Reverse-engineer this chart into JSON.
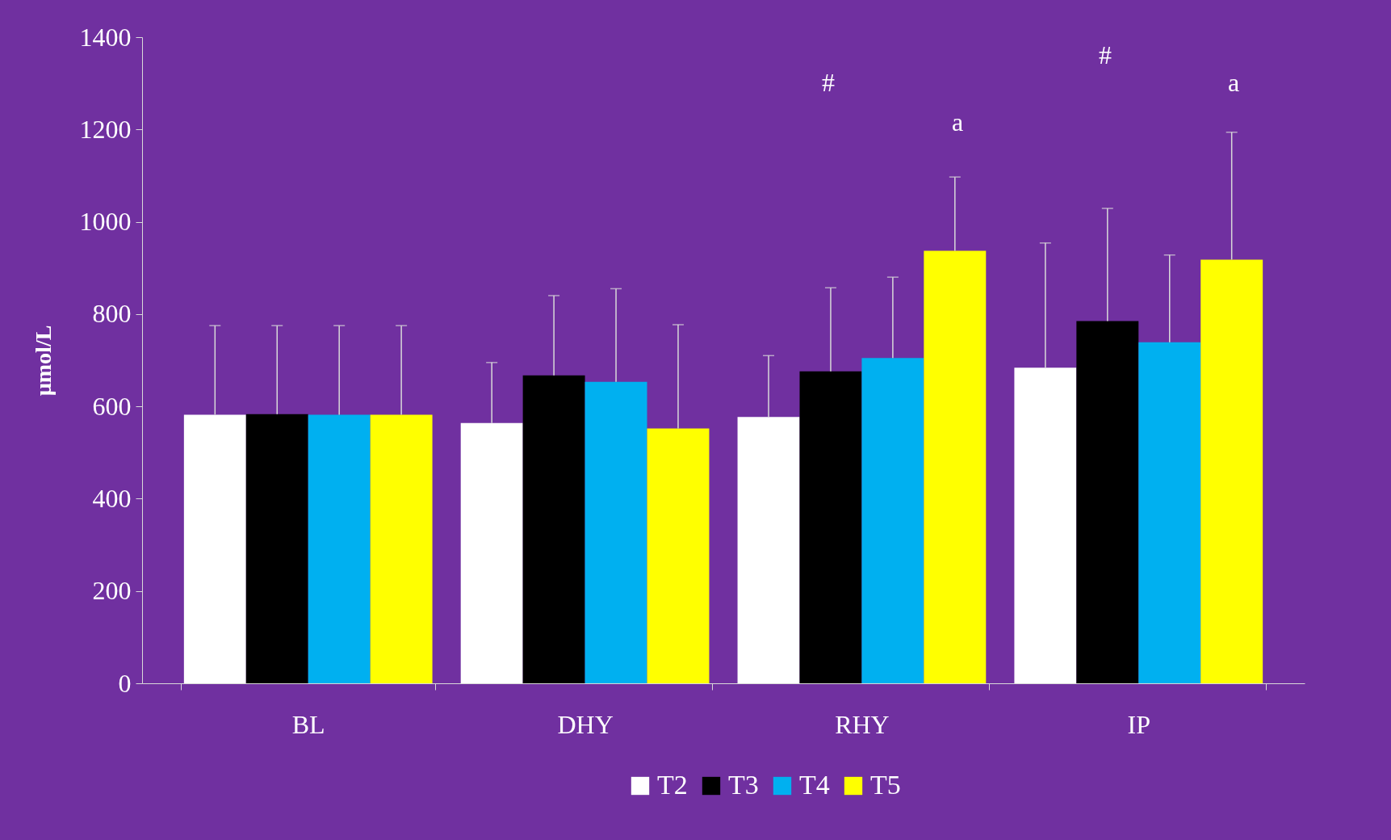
{
  "chart_data": {
    "type": "bar",
    "ylabel": "µmol/L",
    "categories": [
      "BL",
      "DHY",
      "RHY",
      "IP"
    ],
    "series": [
      {
        "name": "T2",
        "color": "#ffffff",
        "values": [
          582,
          564,
          577,
          684
        ],
        "errors": [
          [
            582,
            775
          ],
          [
            564,
            695
          ],
          [
            577,
            710
          ],
          [
            684,
            954
          ]
        ]
      },
      {
        "name": "T3",
        "color": "#000000",
        "values": [
          583,
          667,
          676,
          785
        ],
        "errors": [
          [
            583,
            775
          ],
          [
            667,
            840
          ],
          [
            676,
            857
          ],
          [
            785,
            1029
          ]
        ]
      },
      {
        "name": "T4",
        "color": "#00b0f0",
        "values": [
          582,
          653,
          705,
          739
        ],
        "errors": [
          [
            582,
            775
          ],
          [
            653,
            855
          ],
          [
            705,
            880
          ],
          [
            739,
            928
          ]
        ]
      },
      {
        "name": "T5",
        "color": "#ffff00",
        "values": [
          582,
          552,
          937,
          918
        ],
        "errors": [
          [
            582,
            775
          ],
          [
            552,
            777
          ],
          [
            937,
            1097
          ],
          [
            918,
            1194
          ]
        ]
      }
    ],
    "ylim": [
      0,
      1400
    ],
    "yticks": [
      0,
      200,
      400,
      600,
      800,
      1000,
      1200,
      1400
    ],
    "grid": false,
    "legend": "bottom",
    "annotations": [
      "#",
      "a",
      "#",
      "a"
    ]
  }
}
